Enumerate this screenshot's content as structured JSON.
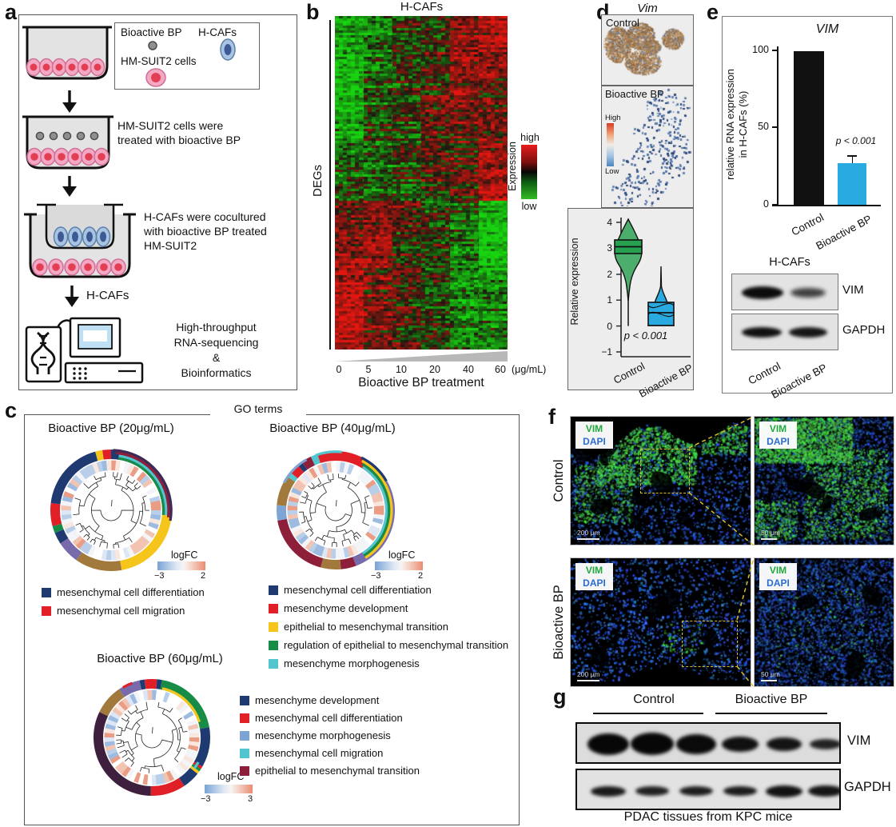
{
  "palette": {
    "accent_blue": "#29abe2",
    "navy": "#1e3a70",
    "red": "#e01f26",
    "yellow": "#f6c51c",
    "green": "#168c47",
    "teal": "#52c5ce",
    "purple": "#776bac",
    "brown": "#a2793c",
    "maroon": "#8e1f3a",
    "steelblue": "#7ea4d3",
    "darkpurple": "#3f1f3e",
    "violin_green": "#4cae6c",
    "violin_green_box": "#27a04f",
    "black": "#111111",
    "vim_green": "#1fa83c",
    "dapi_blue": "#2b6bd4"
  },
  "panel_a": {
    "label": "a",
    "legend": {
      "item1": "Bioactive BP",
      "item2": "H-CAFs",
      "item3": "HM-SUIT2 cells"
    },
    "step2_text": "HM-SUIT2 cells were\ntreated with bioactive BP",
    "step3_text": "H-CAFs were cocultured\nwith bioactive BP treated\nHM-SUIT2",
    "arrow_label": "H-CAFs",
    "step4_text": "High-throughput\nRNA-sequencing\n&\nBioinformatics"
  },
  "panel_b": {
    "label": "b",
    "title": "H-CAFs",
    "row_label": "DEGs",
    "colorbar": {
      "label": "Expression",
      "top": "high",
      "bottom": "low"
    },
    "x_ticks": [
      "0",
      "5",
      "10",
      "20",
      "40",
      "60"
    ],
    "x_unit": "(μg/mL)",
    "x_label": "Bioactive BP treatment"
  },
  "panel_c": {
    "label": "c",
    "title": "GO terms",
    "tile_palette": [
      "#b9cfe9",
      "#dce6f4",
      "#f2f4f8",
      "#f9e6de",
      "#f3c3b2",
      "#ea9c84",
      "#ffffff",
      "#9dbbe0"
    ],
    "plots": [
      {
        "title": "Bioactive BP (20μg/mL)",
        "logfc_label": "logFC",
        "logfc_min": "−3",
        "logfc_max": "2",
        "legend": [
          {
            "color": "#1e3a70",
            "text": "mesenchymal cell differentiation"
          },
          {
            "color": "#e01f26",
            "text": "mesenchymal cell migration"
          }
        ],
        "ring": [
          [
            "#1e3a70",
            0.264
          ],
          [
            "#f6c51c",
            0.208
          ],
          [
            "#a2793c",
            0.125
          ],
          [
            "#776bac",
            0.061
          ],
          [
            "#1e3a70",
            0.031
          ],
          [
            "#168c47",
            0.019
          ],
          [
            "#e01f26",
            0.061
          ],
          [
            "#1e3a70",
            0.189
          ],
          [
            "#f6c51c",
            0.019
          ],
          [
            "#e01f26",
            0.023
          ]
        ],
        "outer": [
          [
            "#168c47",
            8,
            95,
            0
          ],
          [
            "#52c5ce",
            8,
            95,
            1
          ],
          [
            "#8e1f3a",
            5,
            97,
            2
          ],
          [
            "#3f2a55",
            2,
            100,
            3
          ]
        ]
      },
      {
        "title": "Bioactive BP (40μg/mL)",
        "logfc_label": "logFC",
        "logfc_min": "−3",
        "logfc_max": "2",
        "legend": [
          {
            "color": "#1e3a70",
            "text": "mesenchymal cell differentiation"
          },
          {
            "color": "#e01f26",
            "text": "mesenchyme development"
          },
          {
            "color": "#f6c51c",
            "text": "epithelial to mesenchymal transition"
          },
          {
            "color": "#168c47",
            "text": "regulation of epithelial to mesenchymal transition"
          },
          {
            "color": "#52c5ce",
            "text": "mesenchyme morphogenesis"
          }
        ],
        "ring": [
          [
            "#e01f26",
            0.111
          ],
          [
            "#1e3a70",
            0.028
          ],
          [
            "#776bac",
            0.305
          ],
          [
            "#8e1f3a",
            0.042
          ],
          [
            "#a2793c",
            0.055
          ],
          [
            "#8e1f3a",
            0.181
          ],
          [
            "#7ea4d3",
            0.042
          ],
          [
            "#a2793c",
            0.083
          ],
          [
            "#52c5ce",
            0.014
          ],
          [
            "#e01f26",
            0.028
          ],
          [
            "#1e3a70",
            0.014
          ],
          [
            "#8e1f3a",
            0.028
          ],
          [
            "#52c5ce",
            0.019
          ],
          [
            "#e01f26",
            0.05
          ]
        ],
        "outer": [
          [
            "#52c5ce",
            32,
            148,
            0
          ],
          [
            "#168c47",
            30,
            148,
            1
          ],
          [
            "#f6c51c",
            28,
            148,
            2
          ],
          [
            "#1e3a70",
            26,
            60,
            3
          ],
          [
            "#7ea4d3",
            -62,
            -30,
            3
          ],
          [
            "#52c5ce",
            -20,
            6,
            3
          ]
        ]
      },
      {
        "title": "Bioactive BP (60μg/mL)",
        "logfc_label": "logFC",
        "logfc_min": "−3",
        "logfc_max": "3",
        "legend": [
          {
            "color": "#1e3a70",
            "text": "mesenchyme development"
          },
          {
            "color": "#e01f26",
            "text": "mesenchymal cell differentiation"
          },
          {
            "color": "#7ea4d3",
            "text": "mesenchyme morphogenesis"
          },
          {
            "color": "#52c5ce",
            "text": "mesenchymal cell migration"
          },
          {
            "color": "#8e1f3a",
            "text": "epithelial to mesenchymal transition"
          }
        ],
        "ring": [
          [
            "#e01f26",
            0.014
          ],
          [
            "#1e3a70",
            0.014
          ],
          [
            "#168c47",
            0.194
          ],
          [
            "#1e3a70",
            0.111
          ],
          [
            "#e01f26",
            0.008
          ],
          [
            "#168c47",
            0.008
          ],
          [
            "#f6c51c",
            0.008
          ],
          [
            "#1e3a70",
            0.049
          ],
          [
            "#e01f26",
            0.097
          ],
          [
            "#3f1f3e",
            0.319
          ],
          [
            "#a2793c",
            0.083
          ],
          [
            "#776bac",
            0.061
          ],
          [
            "#1e3a70",
            0.014
          ],
          [
            "#e01f26",
            0.02
          ]
        ],
        "outer": [
          [
            "#f6c51c",
            12,
            72,
            0
          ],
          [
            "#e01f26",
            -30,
            -20,
            3
          ],
          [
            "#52c5ce",
            118,
            126,
            1
          ]
        ]
      }
    ]
  },
  "panel_d": {
    "label": "d",
    "title": "Vim",
    "img1_label": "Control",
    "img2_label": "Bioactive BP",
    "colorbar": {
      "top": "High",
      "bottom": "Low"
    },
    "violin": {
      "ylabel": "Relative expression",
      "yticks": [
        "4",
        "3",
        "2",
        "1",
        "0",
        "−1"
      ],
      "p_label": "p < 0.001",
      "categories": [
        "Control",
        "Bioactive BP"
      ],
      "colors": [
        "#4cae6c",
        "#29abe2"
      ],
      "medians": [
        3.1,
        0.6
      ]
    }
  },
  "panel_e": {
    "label": "e",
    "chart": {
      "title": "VIM",
      "ylabel_line1": "relative RNA expression",
      "ylabel_line2": "in H-CAFs (%)",
      "yticks": [
        "100",
        "50",
        "0"
      ],
      "p_label": "p < 0.001",
      "bars": [
        {
          "label": "Control",
          "value": 99,
          "color": "#111111"
        },
        {
          "label": "Bioactive BP",
          "value": 27,
          "color": "#29abe2",
          "error": 4
        }
      ]
    },
    "blot": {
      "header": "H-CAFs",
      "row1": "VIM",
      "row2": "GAPDH",
      "lane1": "Control",
      "lane2": "Bioactive BP"
    }
  },
  "panel_f": {
    "label": "f",
    "row1_label": "Control",
    "row2_label": "Bioactive BP",
    "marker1": "VIM",
    "marker2": "DAPI",
    "scale_large": "200 μm",
    "scale_small": "50 μm"
  },
  "panel_g": {
    "label": "g",
    "group1": "Control",
    "group2": "Bioactive BP",
    "row1": "VIM",
    "row2": "GAPDH",
    "caption": "PDAC tissues from KPC mice"
  }
}
